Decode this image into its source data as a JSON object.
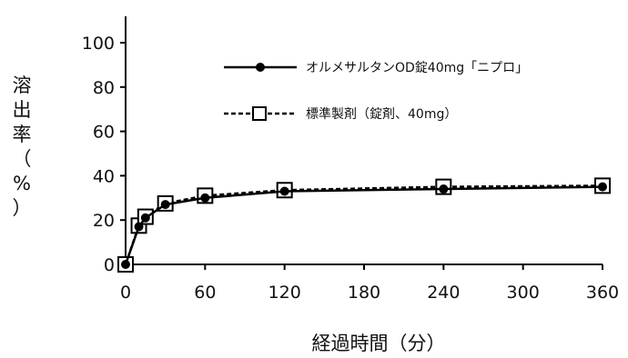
{
  "chart_data": {
    "type": "line",
    "xlabel": "経過時間（分）",
    "ylabel": "溶出率（%）",
    "xlim": [
      0,
      360
    ],
    "ylim": [
      0,
      100
    ],
    "xticks": [
      "0",
      "60",
      "120",
      "180",
      "240",
      "300",
      "360"
    ],
    "yticks": [
      "0",
      "20",
      "40",
      "60",
      "80",
      "100"
    ],
    "grid": false,
    "legend_position": "top-right",
    "series": [
      {
        "name": "オルメサルタンOD錠40mg「ニプロ」",
        "marker": "filled-circle",
        "line": "solid",
        "color": "#000000",
        "x": [
          0,
          10,
          15,
          30,
          60,
          120,
          240,
          360
        ],
        "y": [
          0,
          17,
          21,
          27,
          30,
          33,
          34,
          35
        ]
      },
      {
        "name": "標準製剤（錠剤、40mg）",
        "marker": "open-square",
        "line": "dashed",
        "color": "#000000",
        "x": [
          0,
          10,
          15,
          30,
          60,
          120,
          240,
          360
        ],
        "y": [
          0,
          17.5,
          21.5,
          27.5,
          31,
          33.5,
          35,
          35.5
        ]
      }
    ]
  }
}
